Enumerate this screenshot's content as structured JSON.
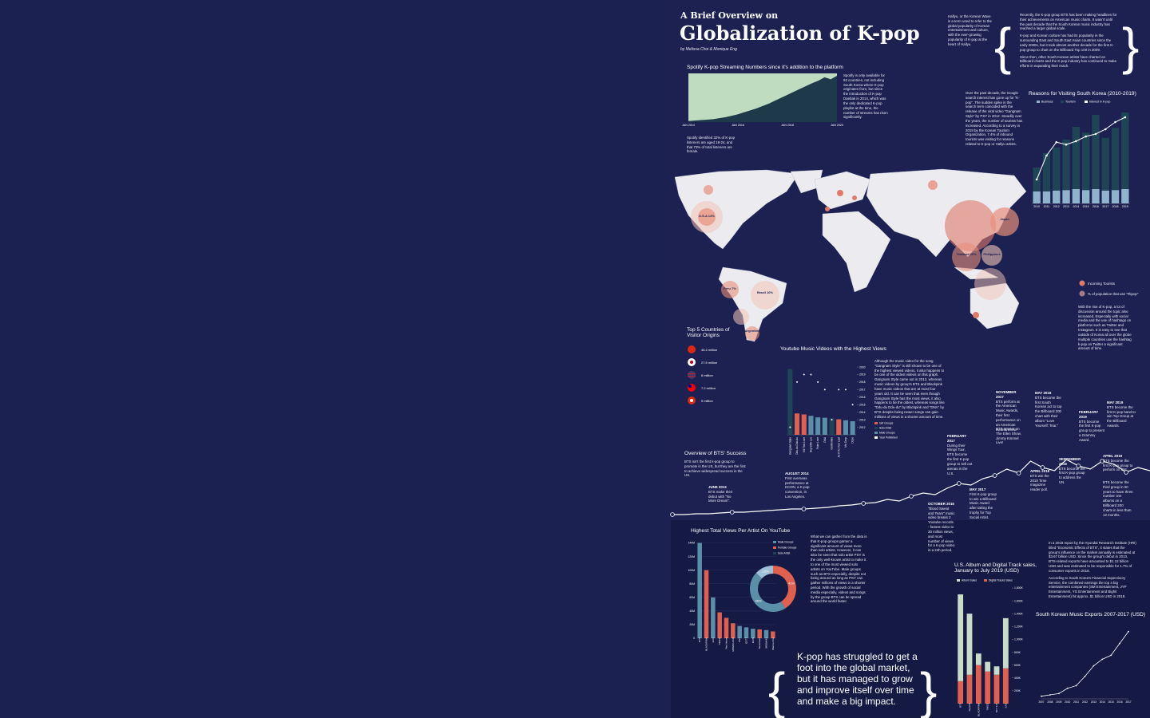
{
  "header": {
    "kicker": "A Brief Overview on",
    "title": "Globalization of K-pop",
    "byline": "by Melissa Choi & Monique Eng"
  },
  "hallyu": "Hallyu, or the Korean Wave is a term used to refer to the global popularity of Korean entertainment and culture, with the ever-growing popularity of K-pop at the heart of Hallyu.",
  "intro": [
    "Recently, the K-pop group BTS has been making headlines for their achievements on American music charts. It wasn't until the past decade that the South Korean music industry has reached a larger global scale.",
    "K-pop and Korean culture has had its popularity in the surrounding East and South East Asian countries since the early 2000s, but it took almost another decade for the first K-pop group to chart on the Billboard Top 100 in 2009.",
    "Since then, other South Korean artists have charted on Billboard charts and the K-pop industry has continued to make efforts in expanding their reach."
  ],
  "spotify": {
    "title": "Spotify K-pop Streaming Numbers since it's addition to the platform",
    "values": [
      2,
      3,
      4,
      5,
      6,
      8,
      10,
      13,
      16,
      20,
      24,
      28,
      33,
      38,
      44,
      50,
      56,
      62,
      68,
      74,
      80,
      85,
      92,
      88,
      95
    ],
    "ylim": [
      0,
      100
    ],
    "xlabels": [
      "JAN 2014",
      "JAN 2016",
      "JAN 2018",
      "JAN 2020"
    ],
    "note": "Spotify is only available for 92 countries, not including South Korea where K-pop originates from, but since the introduction of K-pop Daebak in 2014, which was the only dedicated K-pop playlist at the time, the number of streams has risen significantly.",
    "stat": "Spotify identified 32% of K-pop listeners are aged 18-24, and that 73% of total listeners are female."
  },
  "google_note": "Over the past decade, the Google search interest has gone up for \"K-pop\". The sudden spike in the search term coincided with the release of the viral video \"Gangnam Style\" by PSY in 2012. Steadily over the years, the number of tourists has increased. According to a survey in 2019 by the Korean Tourism Organization, 7.4% of inbound tourists was visiting for reasons related to K-pop or Hallyu artists.",
  "reasons": {
    "title": "Reasons for Visiting South Korea (2010-2019)",
    "categories": [
      "2010",
      "2011",
      "2012",
      "2013",
      "2014",
      "2015",
      "2016",
      "2017",
      "2018",
      "2019"
    ],
    "ylim": [
      0,
      20
    ],
    "series": [
      {
        "name": "Business",
        "color": "#8fb3cc",
        "values": [
          2.5,
          2.5,
          2.7,
          2.8,
          3,
          2.8,
          3,
          2.7,
          2.8,
          3
        ]
      },
      {
        "name": "Tourism",
        "color": "#1e4456",
        "values": [
          5,
          8,
          9,
          10.5,
          13,
          12,
          15.5,
          11,
          13,
          16
        ]
      }
    ],
    "line": {
      "name": "Interest in K-pop",
      "color": "#ffffff",
      "values": [
        5,
        10,
        12.8,
        12.3,
        13,
        14,
        14.5,
        15.5,
        17,
        18
      ]
    }
  },
  "map": {
    "labels": [
      "U.S.A 14%",
      "Peru 7%",
      "Brazil 10%",
      "Argentina",
      "Japan",
      "Thailand 22%",
      "Philippines"
    ],
    "legend": [
      "Incoming Tourists",
      "% of population that use \"#kpop\""
    ],
    "note": "With the rise of K-pop, a lot of discussion around the topic also increased. Especially with social media and the use of hashtags on platforms such as Twitter and Instagram. It is easy to see that outside of Korea all over the globe multiple countries use the hashtag k-pop on Twitter a significant amount of time."
  },
  "top5": {
    "title": "Top 5 Countries of Visitor Origins",
    "items": [
      "46.4 million",
      "27.5 million",
      "8 million",
      "7.2 million",
      "5 million"
    ]
  },
  "youtube": {
    "title": "Youtube Music Videos with the Highest Views",
    "categories": [
      "Gangnam Style",
      "Ddu-du Ddu-du",
      "Kill This Love",
      "Boy With Luv",
      "Fake Love",
      "DNA",
      "Gentleman",
      "As If It's Your Last",
      "Mic Drop",
      "Dope"
    ],
    "values": [
      3.4,
      1.1,
      1.05,
      0.98,
      0.9,
      0.88,
      0.85,
      0.8,
      0.75,
      0.7
    ],
    "colors": [
      "#1e4456",
      "#e0604f",
      "#e0604f",
      "#5b8fa8",
      "#5b8fa8",
      "#5b8fa8",
      "#1e4456",
      "#e0604f",
      "#5b8fa8",
      "#5b8fa8"
    ],
    "ylim": [
      0,
      3.5
    ],
    "years": [
      2012,
      2018,
      2019,
      2019,
      2018,
      2017,
      2013,
      2017,
      2017,
      2015
    ],
    "y2lim": [
      2011,
      2020
    ],
    "y2ticks": [
      2012,
      2013,
      2014,
      2015,
      2016,
      2017,
      2018,
      2019,
      2020
    ],
    "legend": [
      {
        "name": "Girl Groups",
        "color": "#e0604f"
      },
      {
        "name": "Solo Artist",
        "color": "#1e4456"
      },
      {
        "name": "Male Groups",
        "color": "#5b8fa8"
      },
      {
        "name": "Year Published",
        "color": "#ffffff"
      }
    ],
    "note": "Although the music video for the song \"Gangnam Style\" is still shown to be one of the highest viewed videos, it also happens to be one of the oldest videos on this graph. Gangnam Style came out in 2012, whereas music videos by group's BTS and Blackpink have music videos that are at most four years old. It can be seen that even though Gangnam Style has the most views, it also happens to be the oldest, whereas songs like \"Ddu-du Ddu-du\" by Blackpink and \"DNA\" by BTS despite being newer songs can gain millions of views in a shorter amount of time."
  },
  "bts": {
    "title": "Overview of BTS' Success",
    "text": "BTS isn't the first k-pop group to promote in the US, but they are the first to achieve widespread success in the US.",
    "ylim": [
      0,
      100
    ],
    "values": [
      3,
      3,
      4,
      4,
      5,
      6,
      6,
      7,
      8,
      9,
      10,
      10,
      11,
      12,
      14,
      15,
      17,
      18,
      22,
      20,
      26,
      30,
      28,
      36,
      42,
      40,
      48,
      52,
      60,
      55,
      70,
      62,
      58,
      72,
      64,
      60,
      70,
      66,
      56,
      62,
      58
    ],
    "events": [
      {
        "date": "JUNE 2013",
        "text": "BTS make their debut with \"No More Dream\"."
      },
      {
        "date": "AUGUST 2014",
        "text": "First overseas performance at KCON, a K-pop convention, in Los Angeles."
      },
      {
        "date": "OCTOBER 2016",
        "text": "\"Blood Sweat and Tears\" music video breaks 2 Youtube records - fastest video to 30 million views, and most number of views for a K-pop video in a 24h period."
      },
      {
        "date": "FEBRUARY 2017",
        "text": "During their Wings Tour, BTS become the first K-pop group to sell out arenas in the U.S."
      },
      {
        "date": "MAY 2017",
        "text": "First K-pop group to win a Billboard Music Award after taking the trophy for Top Social Artist."
      },
      {
        "date": "NOVEMBER 2017",
        "text": "BTS perform at the American Music Awards, their first performance on an American awards show."
      },
      {
        "text": "BTS appear on The Ellen Show, Jimmy Kimmel Live!"
      },
      {
        "date": "MAY 2018",
        "text": "BTS become the first South Korean act to top the Billboard 200 chart with their album \"Love Yourself: Tear.\""
      },
      {
        "date": "APRIL 2018",
        "text": "BTS win the 2018 Time magazine reader poll."
      },
      {
        "date": "FEBRUARY 2019",
        "text": "BTS become the first K-pop group to present a Grammy Award."
      },
      {
        "date": "SEPTEMBER 2018",
        "text": "BTS become the first K-pop group to address the UN."
      },
      {
        "date": "MAY 2019",
        "text": "BTS become the first K-pop band to win Top Group at the Billboard Awards."
      },
      {
        "date": "APRIL 2019",
        "text": "BTS become the first K-pop group to perform on SNL."
      },
      {
        "text": "BTS become the third group in 50 years to have three number one albums on a Billboard 200 charts in less than 12 months."
      }
    ]
  },
  "artists": {
    "title": "Highest Total Views Per Artist On YouTube",
    "categories": [
      "BTS",
      "BLACKPINK",
      "EXO",
      "TWICE",
      "Red Velvet",
      "MOMOLAND",
      "PSY",
      "GOT7",
      "iKON",
      "Seventeen",
      "BIGBANG",
      "Wanna One"
    ],
    "values": [
      140,
      100,
      60,
      38,
      30,
      22,
      18,
      16,
      14,
      13,
      12,
      10
    ],
    "colors": [
      "#5b8fa8",
      "#e0604f",
      "#5b8fa8",
      "#e0604f",
      "#e0604f",
      "#e0604f",
      "#5b8fa8",
      "#5b8fa8",
      "#5b8fa8",
      "#e0604f",
      "#5b8fa8",
      "#e0604f"
    ],
    "ylim": [
      0,
      150
    ],
    "yticks": [
      0,
      {
        "value": 20,
        "label": "20M"
      },
      {
        "value": 40,
        "label": "40M"
      },
      {
        "value": 60,
        "label": "60M"
      },
      {
        "value": 80,
        "label": "80M"
      },
      {
        "value": 100,
        "label": "100M"
      },
      {
        "value": 120,
        "label": "120M"
      },
      {
        "value": 140,
        "label": "140M"
      }
    ],
    "legend": [
      {
        "name": "Male Groups",
        "color": "#5b8fa8"
      },
      {
        "name": "Female Groups",
        "color": "#e0604f"
      },
      {
        "name": "Solo Artist",
        "color": "#1e4456"
      }
    ],
    "donut": {
      "values": [
        41,
        46,
        13
      ],
      "value_labels": [
        "41%",
        "46%",
        "13%"
      ],
      "colors": [
        "#e0604f",
        "#5b8fa8",
        "#9fc0d6"
      ]
    },
    "note": "What we can gather from the data is that K-pop groups garner a significant amount of views more than solo artists. However, it can also be seen that solo artist PSY is the only well-known artist to make it to one of the most viewed solo artists on YouTube. Male groups such as BTS especially, despite not being around as long as PSY can gather millions of views in a shorter period. With the growth of social media especially, videos and songs by the group BTS can be spread around the world faster."
  },
  "quote": "K-pop has struggled to get a foot into the global market, but it has managed to grow and improve itself over time and make a big impact.",
  "sales": {
    "title": "U.S. Album and Digital Track sales, January to July 2019 (USD)",
    "categories": [
      "BTS",
      "SuperM",
      "BLACKPINK",
      "TWICE",
      "NCT 127",
      "EXO"
    ],
    "ylim": [
      0,
      1800000
    ],
    "yticks": [
      {
        "value": 200000,
        "label": "200K"
      },
      {
        "value": 400000,
        "label": "400K"
      },
      {
        "value": 600000,
        "label": "600K"
      },
      {
        "value": 800000,
        "label": "800K"
      },
      {
        "value": 1000000,
        "label": "1,000K"
      },
      {
        "value": 1200000,
        "label": "1,200K"
      },
      {
        "value": 1400000,
        "label": "1,400K"
      },
      {
        "value": 1600000,
        "label": "1,600K"
      },
      {
        "value": 1800000,
        "label": "1,800K"
      }
    ],
    "series": [
      {
        "name": "Digital Tracks Sales",
        "color": "#e0604f",
        "values": [
          350000,
          450000,
          600000,
          500000,
          450000,
          550000
        ]
      },
      {
        "name": "Album Sales",
        "color": "#c9dcc8",
        "values": [
          1350000,
          950000,
          180000,
          150000,
          130000,
          780000
        ]
      }
    ]
  },
  "exports_note": [
    "In a 2018 report by the Hyundai Research Institute (HRI) titled \"Economic Effects of BTS\", it states that the group's influence on the market annually is estimated at $3.67 billion USD. Since the group's debut in 2013, BTS-related exports have amounted to $1.12 billion USD and was estimated to be responsible for 1.7% of consumer exports in 2018.",
    "According to South Korea's Financial Supervisory Service, the combined earnings the top 4 big entertainment companies (SM Entertainment, JYP Entertainment, YG Entertainment and Bighit Entertainment) hit approx. $1 billion USD in 2018."
  ],
  "exports": {
    "title": "South Korean Music Exports 2007-2017 (USD)",
    "categories": [
      "2007",
      "2008",
      "2009",
      "2010",
      "2011",
      "2012",
      "2013",
      "2014",
      "2015",
      "2016",
      "2017"
    ],
    "values": [
      0.02,
      0.03,
      0.04,
      0.08,
      0.1,
      0.17,
      0.25,
      0.3,
      0.33,
      0.42,
      0.51
    ],
    "ylim": [
      0,
      0.55
    ]
  }
}
